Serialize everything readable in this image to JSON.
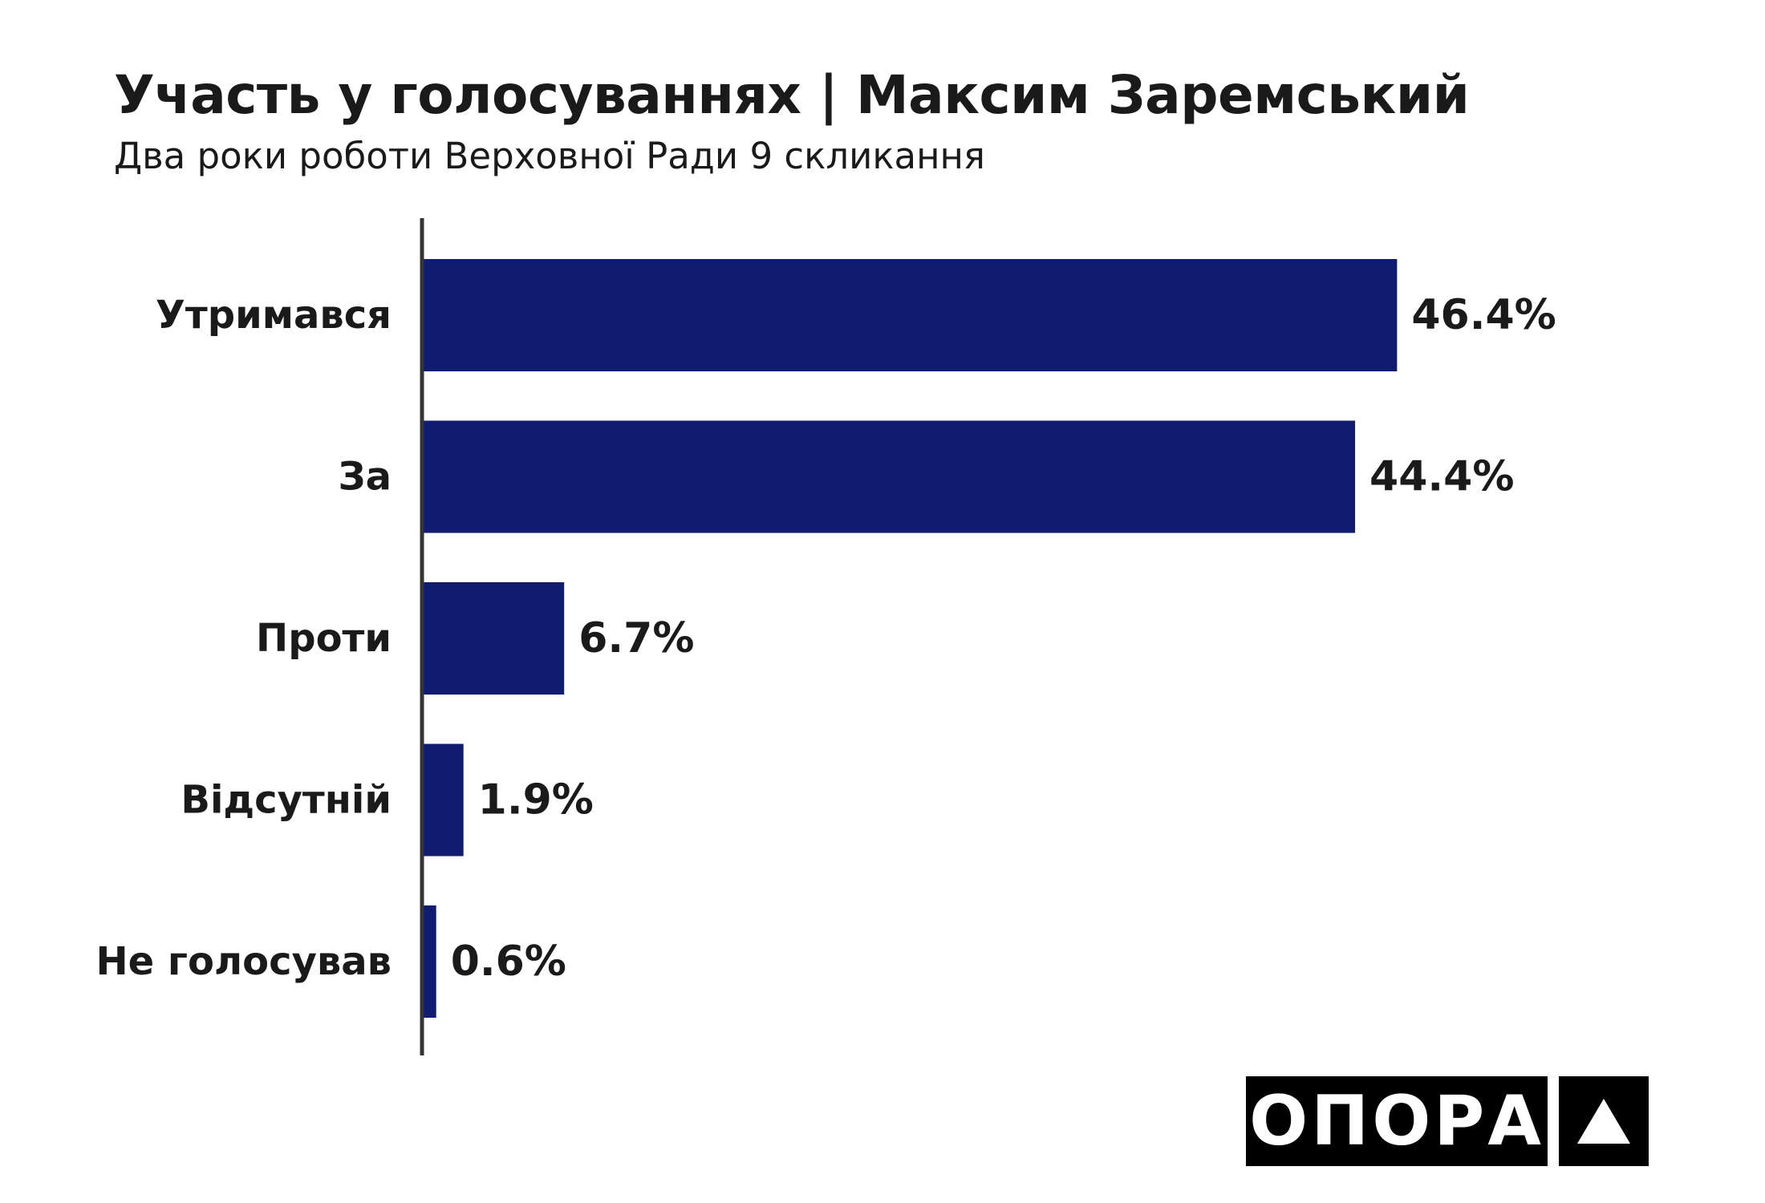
{
  "chart_data": {
    "type": "bar",
    "orientation": "horizontal",
    "title": "Участь у голосуваннях | Максим Заремський",
    "subtitle": "Два роки роботи Верховної Ради 9 скликання",
    "categories": [
      "Утримався",
      "За",
      "Проти",
      "Відсутній",
      "Не голосував"
    ],
    "values": [
      46.4,
      44.4,
      6.7,
      1.9,
      0.6
    ],
    "value_labels": [
      "46.4%",
      "44.4%",
      "6.7%",
      "1.9%",
      "0.6%"
    ],
    "xlim": [
      0,
      50
    ],
    "bar_color": "#0f1c70",
    "grid": false,
    "legend": "none"
  },
  "logo": {
    "text": "ОПОРА",
    "mark_icon": "triangle-up-icon"
  },
  "colors": {
    "bar": "#0f1c70",
    "axis": "#333333",
    "text": "#1a1a1a",
    "logo_bg": "#000000",
    "logo_fg": "#ffffff"
  }
}
